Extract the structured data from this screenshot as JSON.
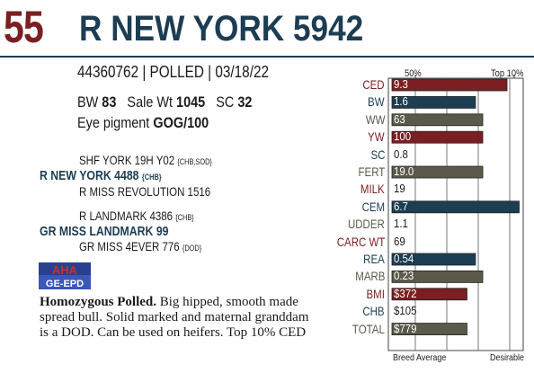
{
  "header": {
    "lot": "55",
    "name": "R NEW YORK 5942"
  },
  "info": {
    "id_line": "44360762 | POLLED | 03/18/22",
    "bw_label": "BW",
    "bw": "83",
    "sale_wt_label": "Sale Wt",
    "sale_wt": "1045",
    "sc_label": "SC",
    "sc": "32",
    "eye_label": "Eye pigment",
    "eye": "GOG/100"
  },
  "pedigree": [
    {
      "name": "SHF YORK 19H Y02",
      "tag": "{CHB,SOD}",
      "bold": false
    },
    {
      "name": "R NEW YORK 4488",
      "tag": "{CHB}",
      "bold": true
    },
    {
      "name": "R MISS REVOLUTION 1516",
      "tag": "",
      "bold": false
    },
    {
      "name": "R LANDMARK 4386",
      "tag": "{CHB}",
      "bold": false
    },
    {
      "name": "GR MISS LANDMARK 99",
      "tag": "",
      "bold": true
    },
    {
      "name": "GR MISS 4EVER 776",
      "tag": "{DOD}",
      "bold": false
    }
  ],
  "logo": {
    "line1": "AHA",
    "line2": "GE-EPD"
  },
  "description": {
    "lead": "Homozygous Polled.",
    "body": " Big hipped, smooth made spread bull. Solid marked and maternal granddam is a DOD. Can be used on heifers. Top 10% CED"
  },
  "colors": {
    "red": "#7a1f22",
    "blue": "#1c3d52",
    "gray": "#5b5a4a"
  },
  "chart_data": {
    "type": "bar",
    "header_left": "50%",
    "header_right": "Top 10%",
    "footer_left": "Breed Average",
    "footer_right": "Desirable",
    "rows": [
      {
        "label": "CED",
        "value": "9.3",
        "color": "red",
        "level": 0.8
      },
      {
        "label": "BW",
        "value": "1.6",
        "color": "blue",
        "level": 0.54
      },
      {
        "label": "WW",
        "value": "63",
        "color": "gray",
        "level": 0.6
      },
      {
        "label": "YW",
        "value": "100",
        "color": "red",
        "level": 0.6
      },
      {
        "label": "SC",
        "value": "0.8",
        "color": "blue",
        "level": 0
      },
      {
        "label": "FERT",
        "value": "19.0",
        "color": "gray",
        "level": 0.6
      },
      {
        "label": "MILK",
        "value": "19",
        "color": "red",
        "level": 0
      },
      {
        "label": "CEM",
        "value": "6.7",
        "color": "blue",
        "level": 0.9
      },
      {
        "label": "UDDER",
        "value": "1.1",
        "color": "gray",
        "level": 0
      },
      {
        "label": "CARC WT",
        "value": "69",
        "color": "red",
        "level": 0
      },
      {
        "label": "REA",
        "value": "0.54",
        "color": "blue",
        "level": 0.54
      },
      {
        "label": "MARB",
        "value": "0.23",
        "color": "gray",
        "level": 0.6
      },
      {
        "label": "BMI",
        "value": "$372",
        "color": "red",
        "level": 0.47
      },
      {
        "label": "CHB",
        "value": "$105",
        "color": "blue",
        "level": 0
      },
      {
        "label": "TOTAL",
        "value": "$779",
        "color": "gray",
        "level": 0.47
      }
    ]
  }
}
